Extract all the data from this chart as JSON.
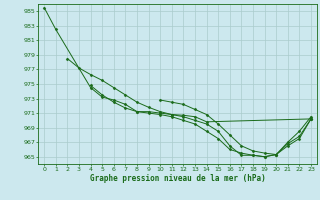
{
  "title": "Graphe pression niveau de la mer (hPa)",
  "background_color": "#cce8ee",
  "grid_color": "#aacccc",
  "line_color": "#1a6b1a",
  "xlim": [
    -0.5,
    23.5
  ],
  "ylim": [
    964,
    986
  ],
  "yticks": [
    965,
    967,
    969,
    971,
    973,
    975,
    977,
    979,
    981,
    983,
    985
  ],
  "xticks": [
    0,
    1,
    2,
    3,
    4,
    5,
    6,
    7,
    8,
    9,
    10,
    11,
    12,
    13,
    14,
    15,
    16,
    17,
    18,
    19,
    20,
    21,
    22,
    23
  ],
  "series": [
    [
      985.5,
      982.5,
      null,
      null,
      974.5,
      973.2,
      972.8,
      972.2,
      971.2,
      971.2,
      971.0,
      970.8,
      970.7,
      970.5,
      969.8,
      null,
      null,
      null,
      null,
      null,
      null,
      null,
      null,
      970.2
    ],
    [
      null,
      null,
      978.5,
      977.2,
      976.3,
      975.5,
      974.5,
      973.5,
      972.5,
      971.8,
      971.2,
      970.8,
      970.5,
      970.0,
      969.5,
      968.5,
      966.5,
      965.2,
      965.2,
      965.0,
      965.3,
      966.8,
      967.8,
      970.2
    ],
    [
      null,
      null,
      null,
      null,
      974.8,
      973.5,
      972.5,
      971.7,
      971.2,
      971.0,
      970.8,
      970.5,
      970.0,
      969.5,
      968.5,
      967.5,
      966.0,
      965.5,
      965.2,
      965.0,
      965.3,
      967.0,
      968.5,
      970.5
    ],
    [
      null,
      null,
      null,
      null,
      null,
      null,
      null,
      null,
      null,
      null,
      972.8,
      972.5,
      972.2,
      971.5,
      970.8,
      969.5,
      968.0,
      966.5,
      965.8,
      965.5,
      965.3,
      966.5,
      967.5,
      970.2
    ]
  ]
}
